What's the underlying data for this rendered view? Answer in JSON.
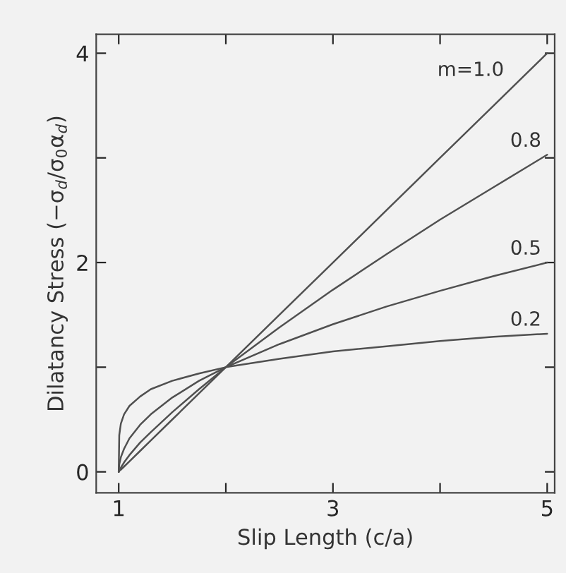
{
  "chart_data": {
    "type": "line",
    "xlabel": "Slip Length (c/a)",
    "ylabel": "Dilatancy Stress (−σ$_{d}$/σ$_{0}$α$_{d}$)",
    "x": [
      1,
      1.005,
      1.02,
      1.05,
      1.1,
      1.2,
      1.3,
      1.5,
      1.75,
      2,
      2.5,
      3,
      3.5,
      4,
      4.5,
      5
    ],
    "series": [
      {
        "name": "m=1.0",
        "color": "#505050",
        "values": [
          0,
          0.01,
          0.02,
          0.05,
          0.1,
          0.2,
          0.3,
          0.5,
          0.75,
          1,
          1.5,
          2,
          2.5,
          3,
          3.5,
          4
        ]
      },
      {
        "name": "0.8",
        "color": "#505050",
        "values": [
          0,
          0.01,
          0.04,
          0.09,
          0.16,
          0.28,
          0.38,
          0.57,
          0.79,
          1,
          1.38,
          1.74,
          2.08,
          2.41,
          2.72,
          3.03
        ]
      },
      {
        "name": "0.5",
        "color": "#505050",
        "values": [
          0,
          0.07,
          0.14,
          0.22,
          0.32,
          0.45,
          0.55,
          0.71,
          0.87,
          1,
          1.22,
          1.41,
          1.58,
          1.73,
          1.87,
          2
        ]
      },
      {
        "name": "0.2",
        "color": "#505050",
        "values": [
          0,
          0.35,
          0.46,
          0.55,
          0.63,
          0.72,
          0.79,
          0.87,
          0.94,
          1,
          1.08,
          1.15,
          1.2,
          1.25,
          1.29,
          1.32
        ]
      }
    ],
    "xlim": [
      0.79,
      5.07
    ],
    "ylim": [
      -0.2,
      4.18
    ],
    "xticks": [
      1,
      {
        "value": 2,
        "label": null
      },
      3,
      {
        "value": 4,
        "label": null
      },
      5
    ],
    "yticks": [
      0,
      {
        "value": 1,
        "label": null
      },
      2,
      {
        "value": 3,
        "label": null
      },
      4
    ],
    "grid": false,
    "marker": "none",
    "line_style": "solid"
  }
}
